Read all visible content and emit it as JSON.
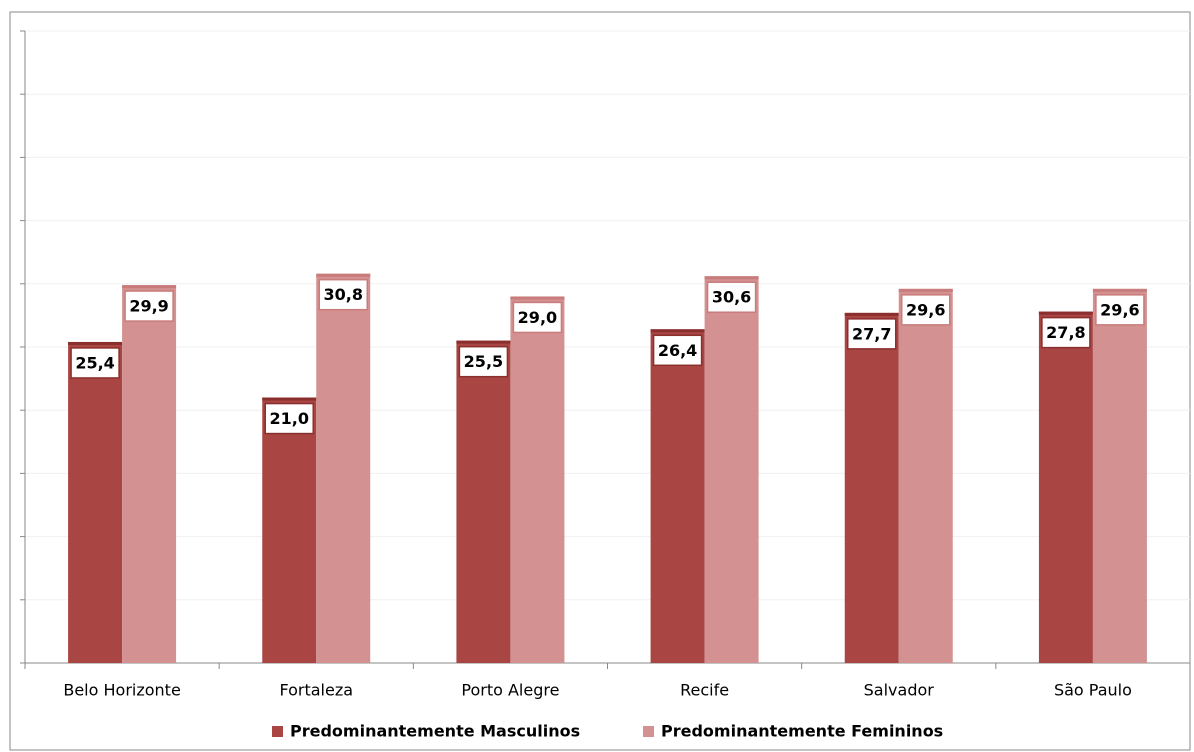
{
  "chart_data": {
    "type": "bar",
    "categories": [
      "Belo Horizonte",
      "Fortaleza",
      "Porto Alegre",
      "Recife",
      "Salvador",
      "São Paulo"
    ],
    "series": [
      {
        "name": "Predominantemente Masculinos",
        "color": "#a94644",
        "values": [
          25.4,
          21.0,
          25.5,
          26.4,
          27.7,
          27.8
        ],
        "value_labels": [
          "25,4",
          "21,0",
          "25,5",
          "26,4",
          "27,7",
          "27,8"
        ]
      },
      {
        "name": "Predominantemente Femininos",
        "color": "#d39191",
        "values": [
          29.9,
          30.8,
          29.0,
          30.6,
          29.6,
          29.6
        ],
        "value_labels": [
          "29,9",
          "30,8",
          "29,0",
          "30,6",
          "29,6",
          "29,6"
        ]
      }
    ],
    "ylim": [
      0,
      50
    ],
    "yticks": [
      0,
      5,
      10,
      15,
      20,
      25,
      30,
      35,
      40,
      45,
      50
    ],
    "grid": true
  }
}
